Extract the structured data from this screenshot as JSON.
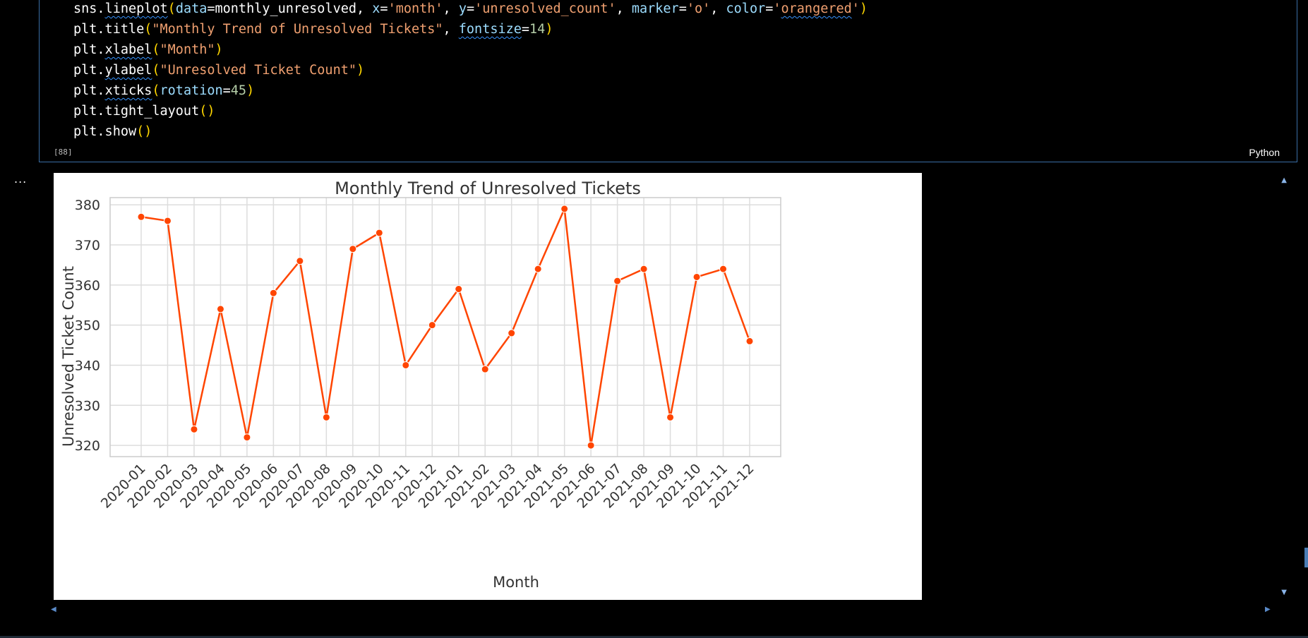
{
  "cell": {
    "execution_count": "[88]",
    "language": "Python",
    "output_prefix": "..."
  },
  "code_lines": [
    [
      {
        "t": "sns.",
        "c": "tok-var"
      },
      {
        "t": "lineplot",
        "c": "tok-fn squig"
      },
      {
        "t": "(",
        "c": "tok-paren"
      },
      {
        "t": "data",
        "c": "tok-param"
      },
      {
        "t": "=monthly_unresolved, ",
        "c": "tok-var"
      },
      {
        "t": "x",
        "c": "tok-param"
      },
      {
        "t": "=",
        "c": "tok-var"
      },
      {
        "t": "'month'",
        "c": "tok-str"
      },
      {
        "t": ", ",
        "c": "tok-var"
      },
      {
        "t": "y",
        "c": "tok-param"
      },
      {
        "t": "=",
        "c": "tok-var"
      },
      {
        "t": "'unresolved_count'",
        "c": "tok-str"
      },
      {
        "t": ", ",
        "c": "tok-var"
      },
      {
        "t": "marker",
        "c": "tok-param"
      },
      {
        "t": "=",
        "c": "tok-var"
      },
      {
        "t": "'o'",
        "c": "tok-str"
      },
      {
        "t": ", ",
        "c": "tok-var"
      },
      {
        "t": "color",
        "c": "tok-param"
      },
      {
        "t": "=",
        "c": "tok-var"
      },
      {
        "t": "'",
        "c": "tok-str"
      },
      {
        "t": "orangered",
        "c": "tok-str squig"
      },
      {
        "t": "'",
        "c": "tok-str"
      },
      {
        "t": ")",
        "c": "tok-paren"
      }
    ],
    [
      {
        "t": "plt.title",
        "c": "tok-fn"
      },
      {
        "t": "(",
        "c": "tok-paren"
      },
      {
        "t": "\"Monthly Trend of Unresolved Tickets\"",
        "c": "tok-str"
      },
      {
        "t": ", ",
        "c": "tok-var"
      },
      {
        "t": "fontsize",
        "c": "tok-param squig"
      },
      {
        "t": "=",
        "c": "tok-var"
      },
      {
        "t": "14",
        "c": "tok-num"
      },
      {
        "t": ")",
        "c": "tok-paren"
      }
    ],
    [
      {
        "t": "plt.",
        "c": "tok-var"
      },
      {
        "t": "xlabel",
        "c": "tok-fn squig"
      },
      {
        "t": "(",
        "c": "tok-paren"
      },
      {
        "t": "\"Month\"",
        "c": "tok-str"
      },
      {
        "t": ")",
        "c": "tok-paren"
      }
    ],
    [
      {
        "t": "plt.",
        "c": "tok-var"
      },
      {
        "t": "ylabel",
        "c": "tok-fn squig"
      },
      {
        "t": "(",
        "c": "tok-paren"
      },
      {
        "t": "\"Unresolved Ticket Count\"",
        "c": "tok-str"
      },
      {
        "t": ")",
        "c": "tok-paren"
      }
    ],
    [
      {
        "t": "plt.",
        "c": "tok-var"
      },
      {
        "t": "xticks",
        "c": "tok-fn squig"
      },
      {
        "t": "(",
        "c": "tok-paren"
      },
      {
        "t": "rotation",
        "c": "tok-param"
      },
      {
        "t": "=",
        "c": "tok-var"
      },
      {
        "t": "45",
        "c": "tok-num"
      },
      {
        "t": ")",
        "c": "tok-paren"
      }
    ],
    [
      {
        "t": "plt.tight_layout",
        "c": "tok-fn"
      },
      {
        "t": "()",
        "c": "tok-paren"
      }
    ],
    [
      {
        "t": "plt.show",
        "c": "tok-fn"
      },
      {
        "t": "()",
        "c": "tok-paren"
      }
    ]
  ],
  "colors": {
    "line": "#ff4500",
    "grid": "#dddddd",
    "axes_border": "#cccccc",
    "text": "#333333",
    "cell_border": "#3a6ea5"
  },
  "chart_data": {
    "type": "line",
    "title": "Monthly Trend of Unresolved Tickets",
    "xlabel": "Month",
    "ylabel": "Unresolved Ticket Count",
    "categories": [
      "2020-01",
      "2020-02",
      "2020-03",
      "2020-04",
      "2020-05",
      "2020-06",
      "2020-07",
      "2020-08",
      "2020-09",
      "2020-10",
      "2020-11",
      "2020-12",
      "2021-01",
      "2021-02",
      "2021-03",
      "2021-04",
      "2021-05",
      "2021-06",
      "2021-07",
      "2021-08",
      "2021-09",
      "2021-10",
      "2021-11",
      "2021-12"
    ],
    "values": [
      377,
      376,
      324,
      354,
      322,
      358,
      366,
      327,
      369,
      373,
      340,
      350,
      359,
      339,
      348,
      364,
      379,
      320,
      361,
      364,
      327,
      362,
      364,
      346
    ],
    "yticks": [
      320,
      330,
      340,
      350,
      360,
      370,
      380
    ],
    "ylim": [
      317.2,
      381.8
    ],
    "grid": true,
    "marker": "o"
  }
}
